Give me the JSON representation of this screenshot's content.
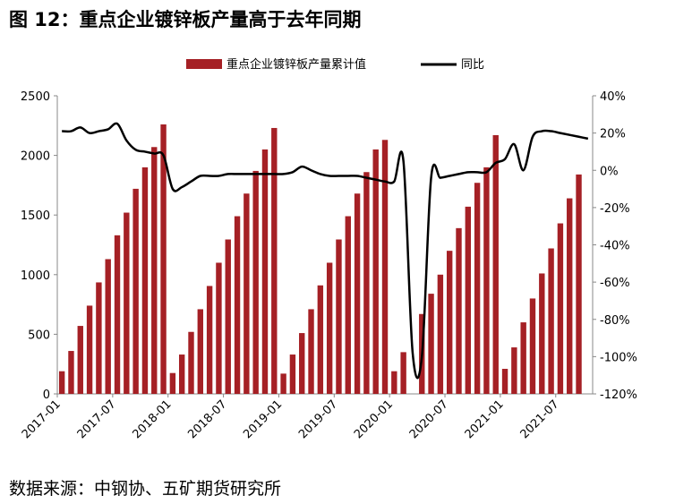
{
  "title": "图 12：重点企业镀锌板产量高于去年同期",
  "source": "数据来源：中钢协、五矿期货研究所",
  "chart_data": {
    "type": "bar",
    "legend_position": "top",
    "colors": {
      "bar": "#a52025",
      "line": "#000000",
      "axis": "#888888"
    },
    "x_tick_labels": [
      "2017-01",
      "2017-07",
      "2018-01",
      "2018-07",
      "2019-01",
      "2019-07",
      "2020-01",
      "2020-07",
      "2021-01",
      "2021-07"
    ],
    "x_tick_months": [
      "2017-01",
      "2017-07",
      "2018-01",
      "2018-07",
      "2019-01",
      "2019-07",
      "2020-01",
      "2020-07",
      "2021-01",
      "2021-07"
    ],
    "y_left": {
      "min": 0,
      "max": 2500,
      "ticks": [
        0,
        500,
        1000,
        1500,
        2000,
        2500
      ],
      "tick_labels": [
        "0",
        "500",
        "1000",
        "1500",
        "2000",
        "2500"
      ]
    },
    "y_right": {
      "min": -120,
      "max": 40,
      "ticks": [
        -120,
        -100,
        -80,
        -60,
        -40,
        -20,
        0,
        20,
        40
      ],
      "tick_labels": [
        "-120%",
        "-100%",
        "-80%",
        "-60%",
        "-40%",
        "-20%",
        "0%",
        "20%",
        "40%"
      ]
    },
    "months": [
      "2017-01",
      "2017-02",
      "2017-03",
      "2017-04",
      "2017-05",
      "2017-06",
      "2017-07",
      "2017-08",
      "2017-09",
      "2017-10",
      "2017-11",
      "2017-12",
      "2018-01",
      "2018-02",
      "2018-03",
      "2018-04",
      "2018-05",
      "2018-06",
      "2018-07",
      "2018-08",
      "2018-09",
      "2018-10",
      "2018-11",
      "2018-12",
      "2019-01",
      "2019-02",
      "2019-03",
      "2019-04",
      "2019-05",
      "2019-06",
      "2019-07",
      "2019-08",
      "2019-09",
      "2019-10",
      "2019-11",
      "2019-12",
      "2020-01",
      "2020-02",
      "2020-03",
      "2020-04",
      "2020-05",
      "2020-06",
      "2020-07",
      "2020-08",
      "2020-09",
      "2020-10",
      "2020-11",
      "2020-12",
      "2021-01",
      "2021-02",
      "2021-03",
      "2021-04",
      "2021-05",
      "2021-06",
      "2021-07",
      "2021-08",
      "2021-09",
      "2021-10"
    ],
    "series": [
      {
        "name": "重点企业镀锌板产量累计值",
        "type": "bar",
        "axis": "left",
        "values": [
          190,
          360,
          570,
          740,
          935,
          1130,
          1330,
          1520,
          1720,
          1900,
          2070,
          2260,
          175,
          330,
          520,
          710,
          905,
          1100,
          1295,
          1490,
          1680,
          1870,
          2050,
          2230,
          170,
          330,
          510,
          710,
          910,
          1100,
          1295,
          1490,
          1680,
          1860,
          2050,
          2130,
          190,
          350,
          null,
          670,
          840,
          1000,
          1200,
          1390,
          1570,
          1770,
          1900,
          2170,
          210,
          390,
          600,
          800,
          1010,
          1220,
          1430,
          1640,
          1840,
          null
        ]
      },
      {
        "name": "同比",
        "type": "line",
        "axis": "right",
        "values": [
          21,
          21,
          23,
          20,
          21,
          22,
          25,
          16,
          11,
          10,
          9,
          8,
          -10,
          -9,
          -6,
          -3,
          -3,
          -3,
          -2,
          -2,
          -2,
          -2,
          -2,
          -2,
          -2,
          -1,
          2,
          0,
          -2,
          -3,
          -3,
          -3,
          -3,
          -4,
          -5,
          -6,
          -6,
          5,
          -98,
          -100,
          -4,
          -4,
          -3,
          -2,
          -1,
          -1,
          -1,
          4,
          6,
          14,
          0,
          18,
          21,
          21,
          20,
          19,
          18,
          17
        ]
      }
    ]
  }
}
